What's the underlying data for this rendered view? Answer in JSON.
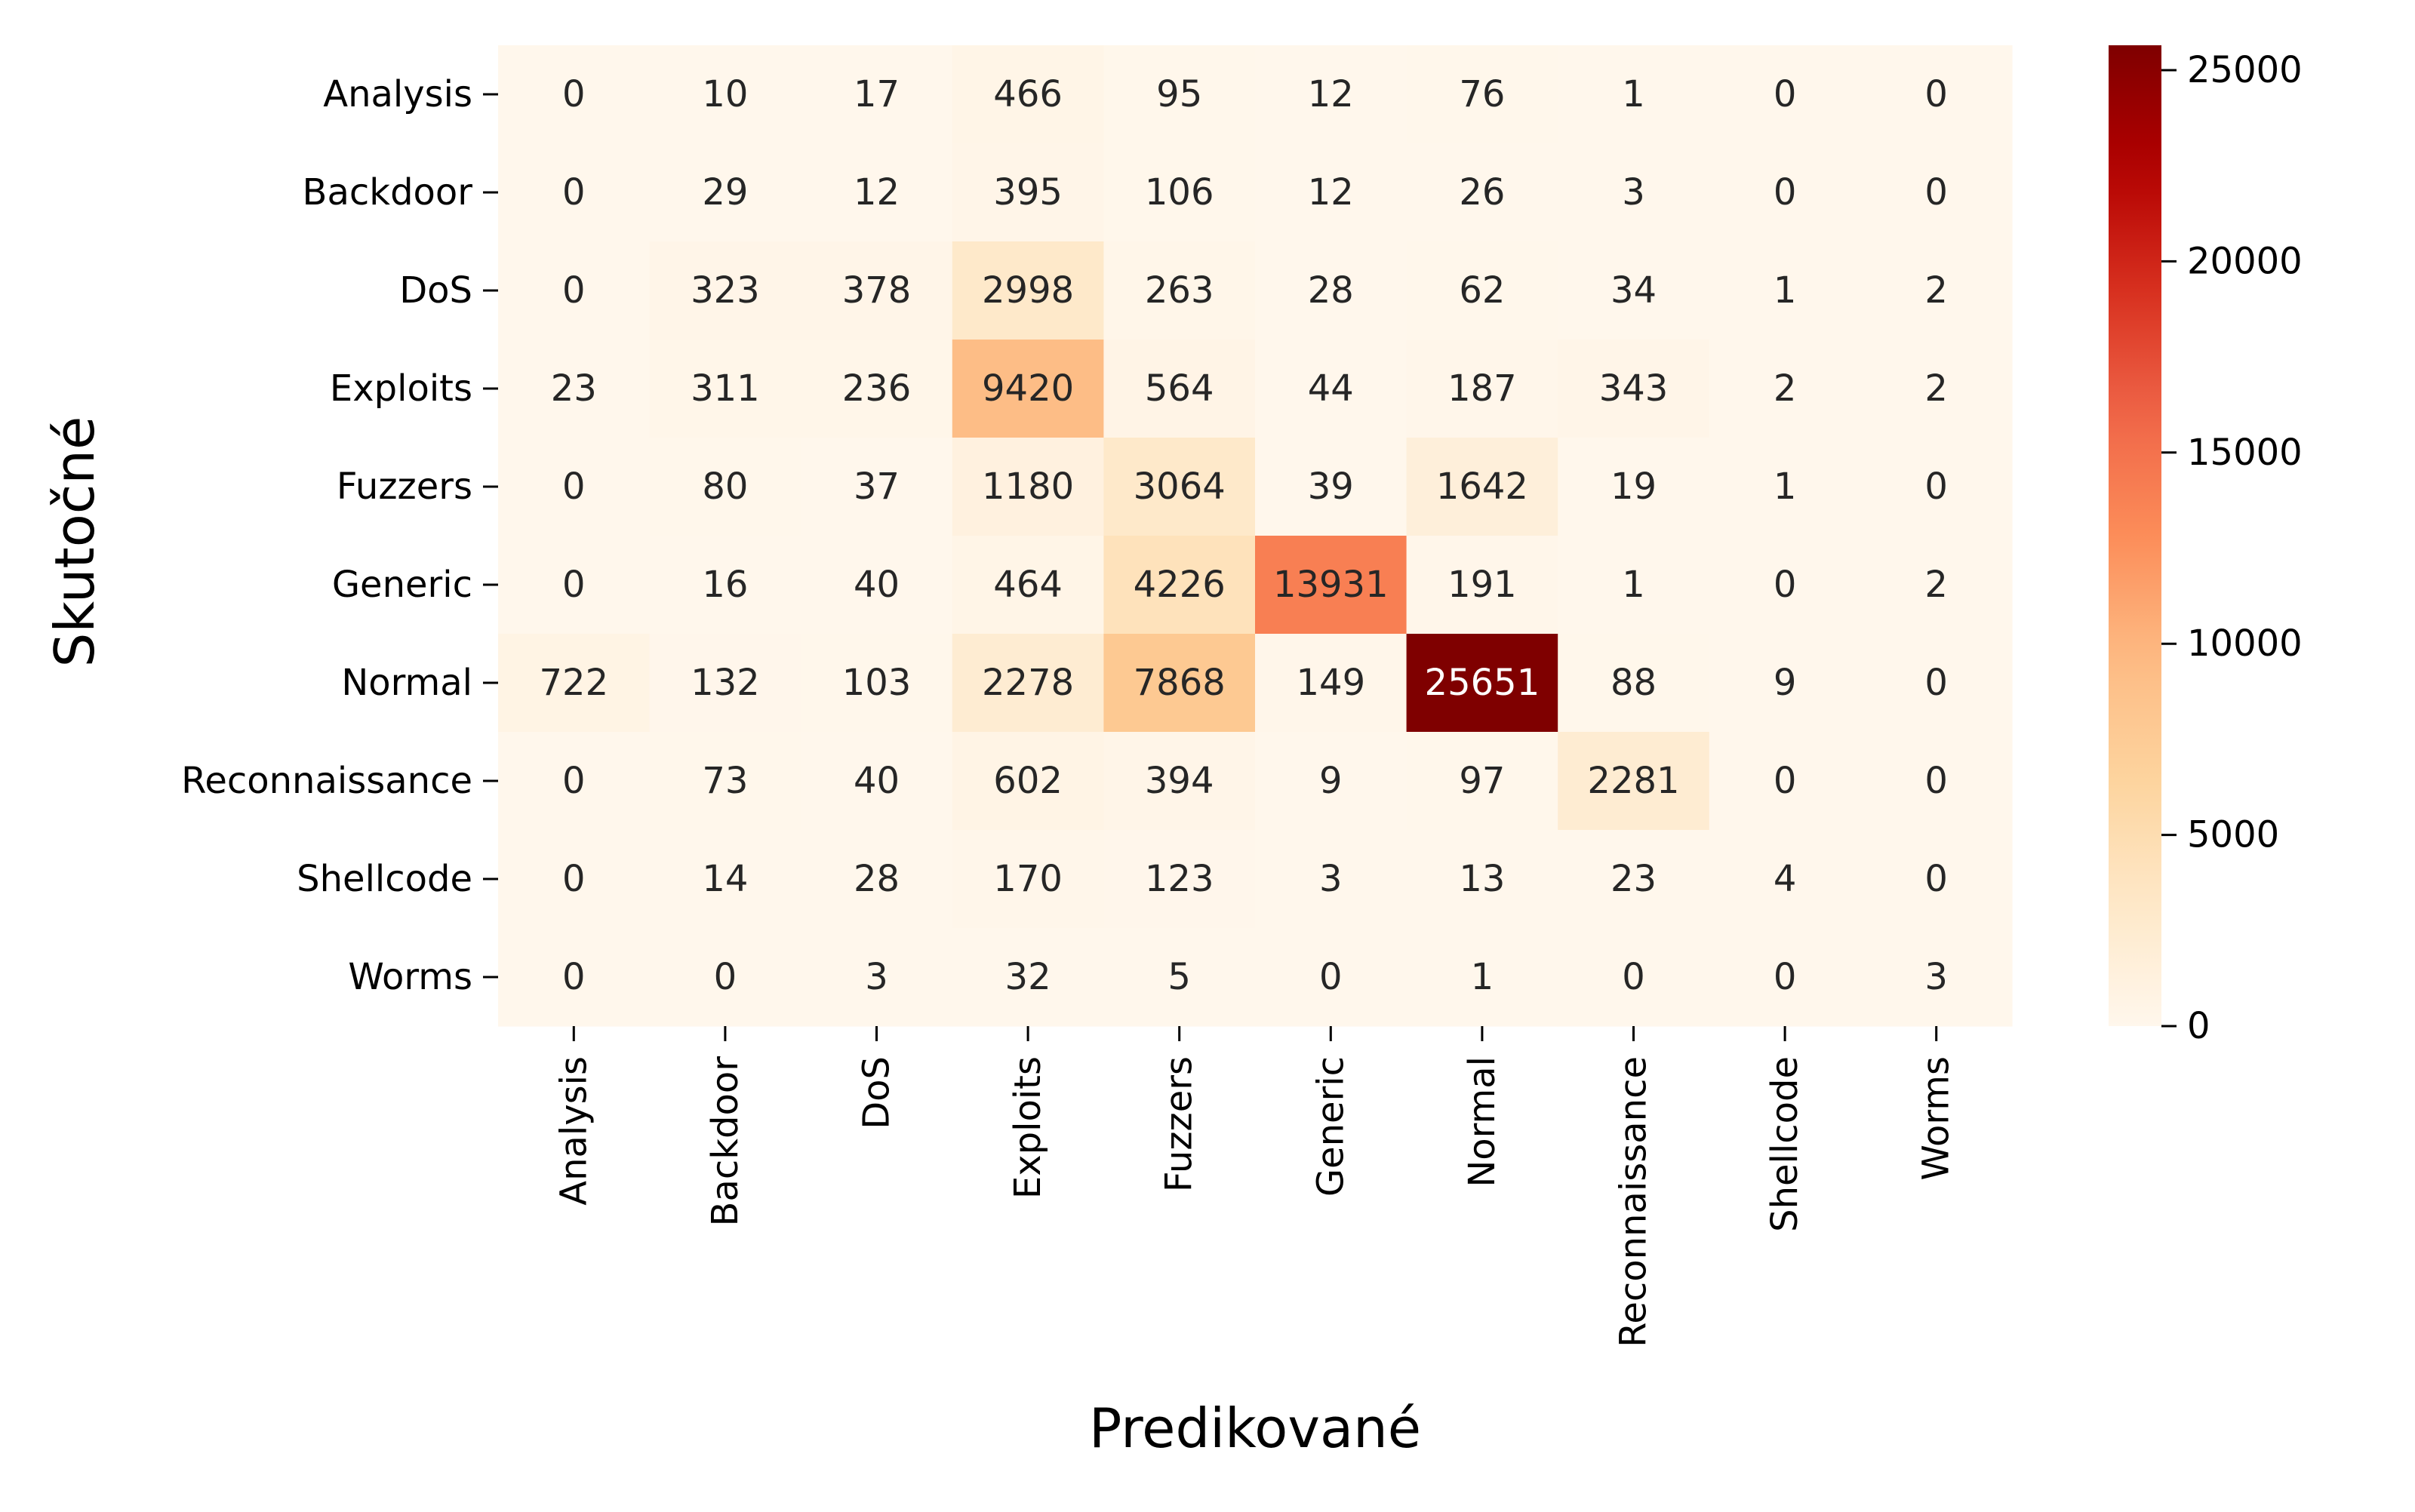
{
  "chart_data": {
    "type": "heatmap",
    "title": "",
    "xlabel": "Predikované",
    "ylabel": "Skutočné",
    "x_categories": [
      "Analysis",
      "Backdoor",
      "DoS",
      "Exploits",
      "Fuzzers",
      "Generic",
      "Normal",
      "Reconnaissance",
      "Shellcode",
      "Worms"
    ],
    "y_categories": [
      "Analysis",
      "Backdoor",
      "DoS",
      "Exploits",
      "Fuzzers",
      "Generic",
      "Normal",
      "Reconnaissance",
      "Shellcode",
      "Worms"
    ],
    "values": [
      [
        0,
        10,
        17,
        466,
        95,
        12,
        76,
        1,
        0,
        0
      ],
      [
        0,
        29,
        12,
        395,
        106,
        12,
        26,
        3,
        0,
        0
      ],
      [
        0,
        323,
        378,
        2998,
        263,
        28,
        62,
        34,
        1,
        2
      ],
      [
        23,
        311,
        236,
        9420,
        564,
        44,
        187,
        343,
        2,
        2
      ],
      [
        0,
        80,
        37,
        1180,
        3064,
        39,
        1642,
        19,
        1,
        0
      ],
      [
        0,
        16,
        40,
        464,
        4226,
        13931,
        191,
        1,
        0,
        2
      ],
      [
        722,
        132,
        103,
        2278,
        7868,
        149,
        25651,
        88,
        9,
        0
      ],
      [
        0,
        73,
        40,
        602,
        394,
        9,
        97,
        2281,
        0,
        0
      ],
      [
        0,
        14,
        28,
        170,
        123,
        3,
        13,
        23,
        4,
        0
      ],
      [
        0,
        0,
        3,
        32,
        5,
        0,
        1,
        0,
        0,
        3
      ]
    ],
    "colorscale": "OrRd",
    "colorbar": {
      "range": [
        0,
        25651
      ],
      "ticks": [
        0,
        5000,
        10000,
        15000,
        20000,
        25000
      ]
    },
    "grid": false,
    "legend": "colorbar-right"
  }
}
